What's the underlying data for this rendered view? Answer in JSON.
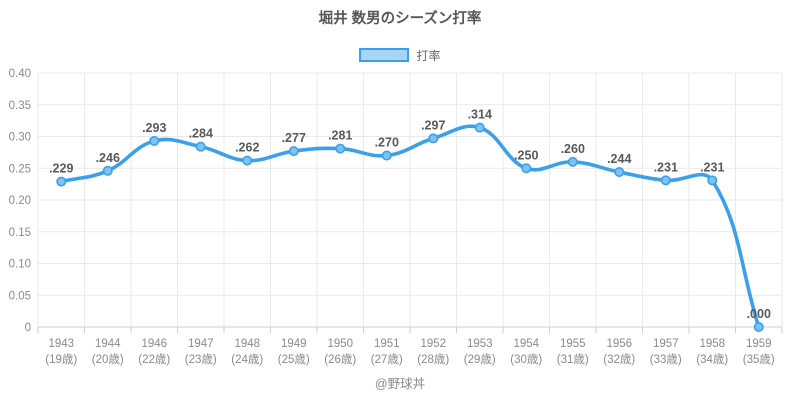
{
  "title": "堀井 数男のシーズン打率",
  "legend": {
    "label": "打率"
  },
  "footer": "@野球丼",
  "colors": {
    "line": "#3aa0ec",
    "point_fill": "#7fc2f1",
    "legend_fill": "#a9d5f5",
    "grid": "#e9e9e9",
    "axis_line": "#cfcfcf",
    "tick_text": "#8a8a8a",
    "data_label": "#595959",
    "title_text": "#565656",
    "legend_label": "#666666",
    "footer_text": "#8a8a8a"
  },
  "chart_data": {
    "type": "line",
    "title": "堀井 数男のシーズン打率",
    "series": [
      {
        "name": "打率",
        "values": [
          0.229,
          0.246,
          0.293,
          0.284,
          0.262,
          0.277,
          0.281,
          0.27,
          0.297,
          0.314,
          0.25,
          0.26,
          0.244,
          0.231,
          0.231,
          0.0
        ]
      }
    ],
    "point_labels": [
      ".229",
      ".246",
      ".293",
      ".284",
      ".262",
      ".277",
      ".281",
      ".270",
      ".297",
      ".314",
      ".250",
      ".260",
      ".244",
      ".231",
      ".231",
      ".000"
    ],
    "categories": [
      {
        "year": "1943",
        "age": "(19歳)"
      },
      {
        "year": "1944",
        "age": "(20歳)"
      },
      {
        "year": "1946",
        "age": "(22歳)"
      },
      {
        "year": "1947",
        "age": "(23歳)"
      },
      {
        "year": "1948",
        "age": "(24歳)"
      },
      {
        "year": "1949",
        "age": "(25歳)"
      },
      {
        "year": "1950",
        "age": "(26歳)"
      },
      {
        "year": "1951",
        "age": "(27歳)"
      },
      {
        "year": "1952",
        "age": "(28歳)"
      },
      {
        "year": "1953",
        "age": "(29歳)"
      },
      {
        "year": "1954",
        "age": "(30歳)"
      },
      {
        "year": "1955",
        "age": "(31歳)"
      },
      {
        "year": "1956",
        "age": "(32歳)"
      },
      {
        "year": "1957",
        "age": "(33歳)"
      },
      {
        "year": "1958",
        "age": "(34歳)"
      },
      {
        "year": "1959",
        "age": "(35歳)"
      }
    ],
    "xlabel": "",
    "ylabel": "",
    "ylim": [
      0,
      0.4
    ],
    "y_ticks": [
      {
        "value": 0.4,
        "label": "0.40"
      },
      {
        "value": 0.35,
        "label": "0.35"
      },
      {
        "value": 0.3,
        "label": "0.30"
      },
      {
        "value": 0.25,
        "label": "0.25"
      },
      {
        "value": 0.2,
        "label": "0.20"
      },
      {
        "value": 0.15,
        "label": "0.15"
      },
      {
        "value": 0.1,
        "label": "0.10"
      },
      {
        "value": 0.05,
        "label": "0.05"
      },
      {
        "value": 0,
        "label": "0"
      }
    ],
    "grid": true,
    "legend_position": "top",
    "line_tension": 0.4
  }
}
